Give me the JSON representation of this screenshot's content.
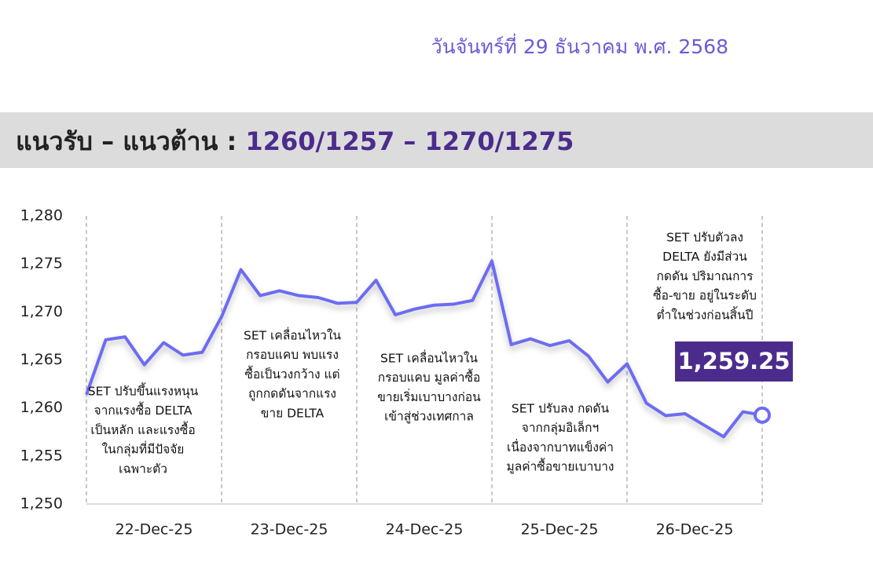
{
  "header": {
    "date": "วันจันทร์ที่ 29 ธันวาคม พ.ศ. 2568",
    "title_label": "แนวรับ – แนวต้าน : ",
    "title_levels": "1260/1257 – 1270/1275"
  },
  "chart_data": {
    "type": "line",
    "x_labels": [
      "22-Dec-25",
      "23-Dec-25",
      "24-Dec-25",
      "25-Dec-25",
      "26-Dec-25"
    ],
    "series": [
      {
        "color": "#6c6cf2",
        "values": [
          1261.4,
          1267.1,
          1267.4,
          1264.5,
          1266.8,
          1265.5,
          1265.8,
          1269.5,
          1274.4,
          1271.7,
          1272.2,
          1271.7,
          1271.5,
          1270.9,
          1271.0,
          1273.3,
          1269.7,
          1270.3,
          1270.7,
          1270.8,
          1271.2,
          1275.3,
          1266.6,
          1267.2,
          1266.5,
          1267.0,
          1265.4,
          1262.7,
          1264.6,
          1260.5,
          1259.2,
          1259.4,
          1258.2,
          1257.0,
          1259.6,
          1259.25
        ]
      }
    ],
    "end_label": "1,259.25",
    "ylim": [
      1250,
      1280
    ],
    "yticks": [
      {
        "value": 1250,
        "label": "1,250"
      },
      {
        "value": 1255,
        "label": "1,255"
      },
      {
        "value": 1260,
        "label": "1,260"
      },
      {
        "value": 1265,
        "label": "1,265"
      },
      {
        "value": 1270,
        "label": "1,270"
      },
      {
        "value": 1275,
        "label": "1,275"
      },
      {
        "value": 1280,
        "label": "1,280"
      }
    ],
    "annotations": [
      [
        "SET ปรับขึ้นแรงหนุน",
        "จากแรงซื้อ DELTA",
        "เป็นหลัก และแรงซื้อ",
        "ในกลุ่มที่มีปัจจัย",
        "เฉพาะตัว"
      ],
      [
        "SET เคลื่อนไหวใน",
        "กรอบแคบ พบแรง",
        "ซื้อเป็นวงกว้าง แต่",
        "ถูกกดดันจากแรง",
        "ขาย DELTA"
      ],
      [
        "SET เคลื่อนไหวใน",
        "กรอบแคบ มูลค่าซื้อ",
        "ขายเริ่มเบาบางก่อน",
        "เข้าสู่ช่วงเทศกาล"
      ],
      [
        "SET ปรับลง กดดัน",
        "จากกลุ่มอิเล็กฯ",
        "เนื่องจากบาทแข็งค่า",
        "มูลค่าซื้อขายเบาบาง"
      ],
      [
        "SET ปรับตัวลง",
        "DELTA ยังมีส่วน",
        "กดดัน ปริมาณการ",
        "ซื้อ-ขาย อยู่ในระดับ",
        "ต่ำในช่วงก่อนสิ้นปี"
      ]
    ]
  }
}
